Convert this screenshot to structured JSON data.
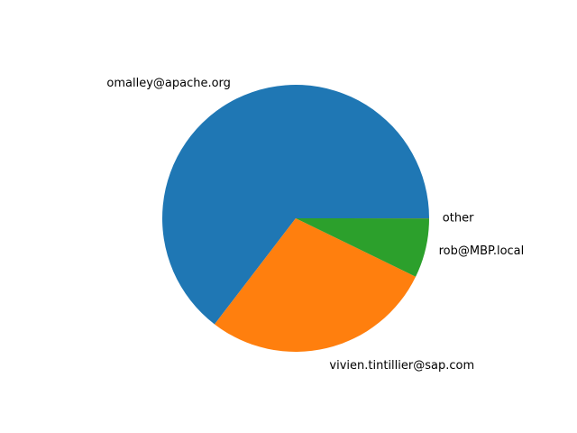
{
  "chart_data": {
    "type": "pie",
    "title": "",
    "categories": [
      "omalley@apache.org",
      "vivien.tintillier@sap.com",
      "rob@MBP.local",
      "other"
    ],
    "values": [
      64.6,
      28.2,
      7.2,
      0.01
    ],
    "colors": [
      "#1f77b4",
      "#ff7f0e",
      "#2ca02c",
      "#d62728"
    ],
    "start_angle": 0,
    "direction": "counterclockwise",
    "legend": "none"
  }
}
